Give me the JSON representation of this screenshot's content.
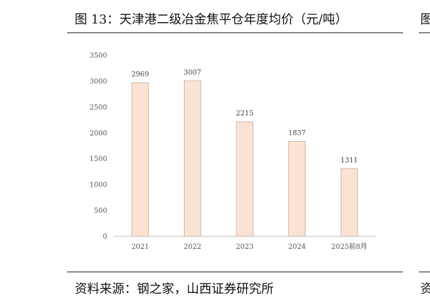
{
  "figure": {
    "title": "图 13：天津港二级冶金焦平仓年度均价（元/吨）",
    "source": "资料来源：钢之家，山西证券研究所"
  },
  "colors": {
    "bar_fill": "#fae3d5",
    "bar_stroke": "#c9a899",
    "axis": "#bbbbbb"
  },
  "chart_data": {
    "type": "bar",
    "title": "天津港二级冶金焦平仓年度均价（元/吨）",
    "categories": [
      "2021",
      "2022",
      "2023",
      "2024",
      "2025前8月"
    ],
    "values": [
      2969,
      3007,
      2215,
      1837,
      1311
    ],
    "ylim": [
      0,
      3500
    ],
    "yticks": [
      0,
      500,
      1000,
      1500,
      2000,
      2500,
      3000,
      3500
    ],
    "xlabel": "",
    "ylabel": "",
    "grid": false,
    "data_labels": true,
    "legend": "none"
  }
}
